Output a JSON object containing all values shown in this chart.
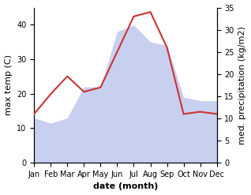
{
  "months": [
    "Jan",
    "Feb",
    "Mar",
    "Apr",
    "May",
    "Jun",
    "Jul",
    "Aug",
    "Sep",
    "Oct",
    "Nov",
    "Dec"
  ],
  "max_temp": [
    13,
    11.5,
    13,
    22,
    22,
    38,
    40,
    35,
    34,
    19,
    18,
    18
  ],
  "precipitation": [
    11,
    15.5,
    19.5,
    16,
    17,
    25,
    33,
    34,
    26,
    11,
    11.5,
    11
  ],
  "temp_fill_color": "#c8d0f0",
  "line_color": "#cc3333",
  "temp_ylim": [
    0,
    45
  ],
  "precip_ylim": [
    0,
    35
  ],
  "temp_yticks": [
    0,
    10,
    20,
    30,
    40
  ],
  "precip_yticks": [
    0,
    5,
    10,
    15,
    20,
    25,
    30,
    35
  ],
  "ylabel_left": "max temp (C)",
  "ylabel_right": "med. precipitation (kg/m2)",
  "xlabel": "date (month)",
  "background_color": "#ffffff",
  "label_fontsize": 8,
  "tick_fontsize": 7
}
